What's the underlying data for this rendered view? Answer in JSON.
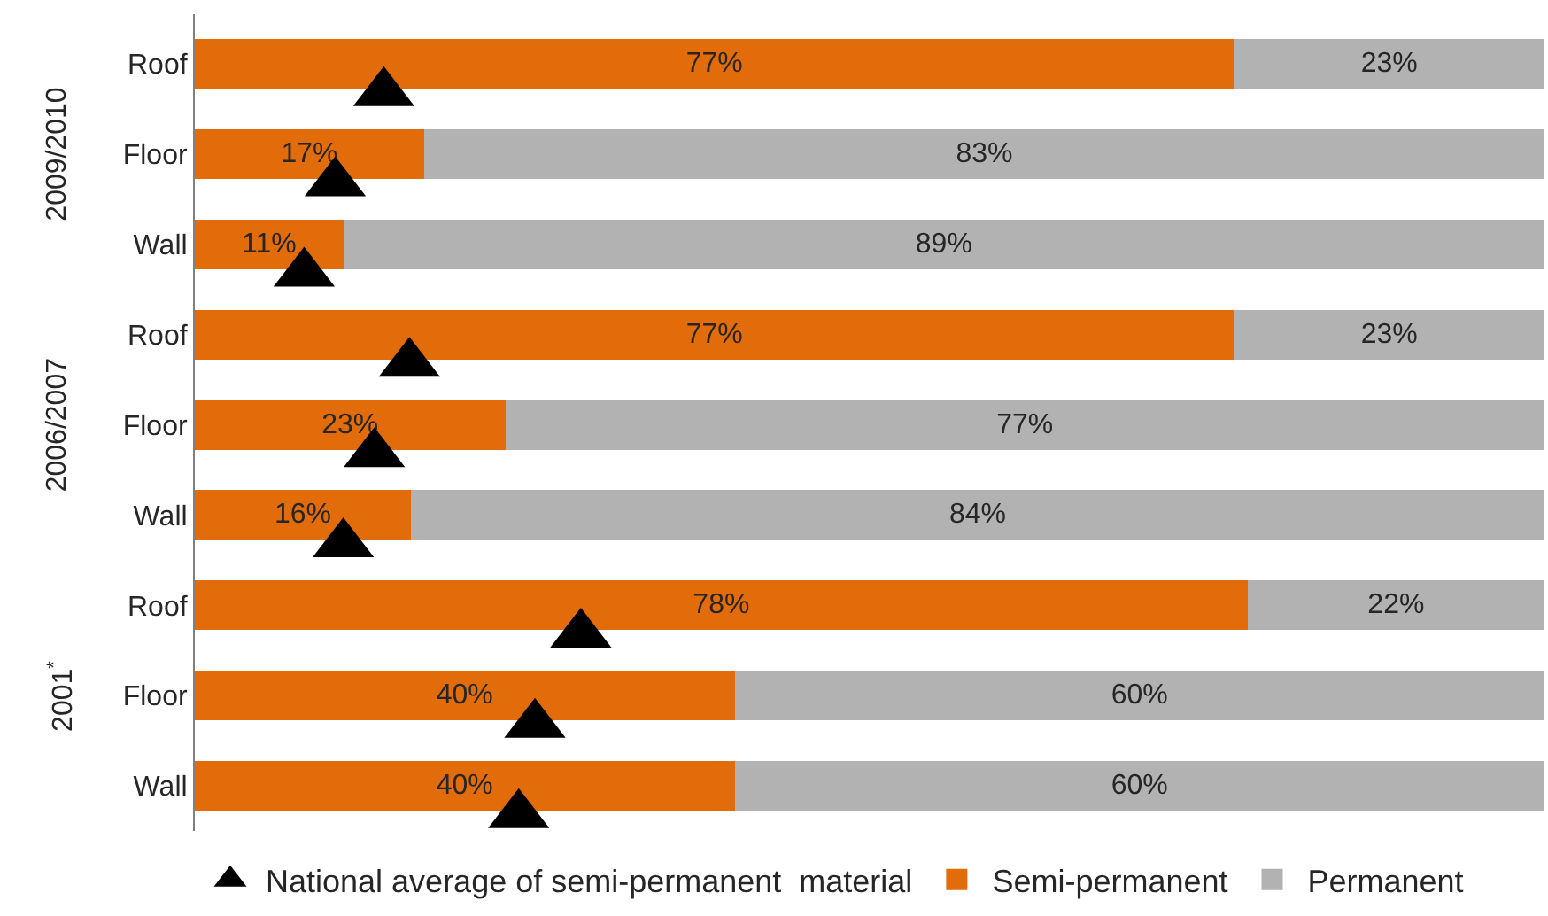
{
  "chart_data": {
    "type": "bar",
    "orientation": "horizontal",
    "stacked": true,
    "categories": [
      "Roof",
      "Floor",
      "Wall",
      "Roof",
      "Floor",
      "Wall",
      "Roof",
      "Floor",
      "Wall"
    ],
    "series": [
      {
        "name": "Semi-permanent",
        "color": "#e36c0a",
        "values": [
          77,
          17,
          11,
          77,
          23,
          16,
          78,
          40,
          40
        ],
        "value_labels": [
          "77%",
          "17%",
          "11%",
          "77%",
          "23%",
          "16%",
          "78%",
          "40%",
          "40%"
        ]
      },
      {
        "name": "Permanent",
        "color": "#b2b2b2",
        "values": [
          23,
          83,
          89,
          23,
          77,
          84,
          22,
          60,
          60
        ],
        "value_labels": [
          "23%",
          "83%",
          "89%",
          "23%",
          "77%",
          "84%",
          "22%",
          "60%",
          "60%"
        ]
      },
      {
        "name": "National average of semi-permanent  material",
        "type": "scatter",
        "color": "#000000",
        "values": [
          14,
          10.4,
          8.1,
          15.9,
          13.3,
          11,
          28.6,
          25.2,
          24
        ]
      }
    ],
    "annotations": [
      "2009/2010",
      "2006/2007",
      "2001$^{*}$"
    ],
    "xlim": [
      0,
      100
    ],
    "tick_labels": "y",
    "legend": "bottom",
    "marker": "triangle"
  }
}
